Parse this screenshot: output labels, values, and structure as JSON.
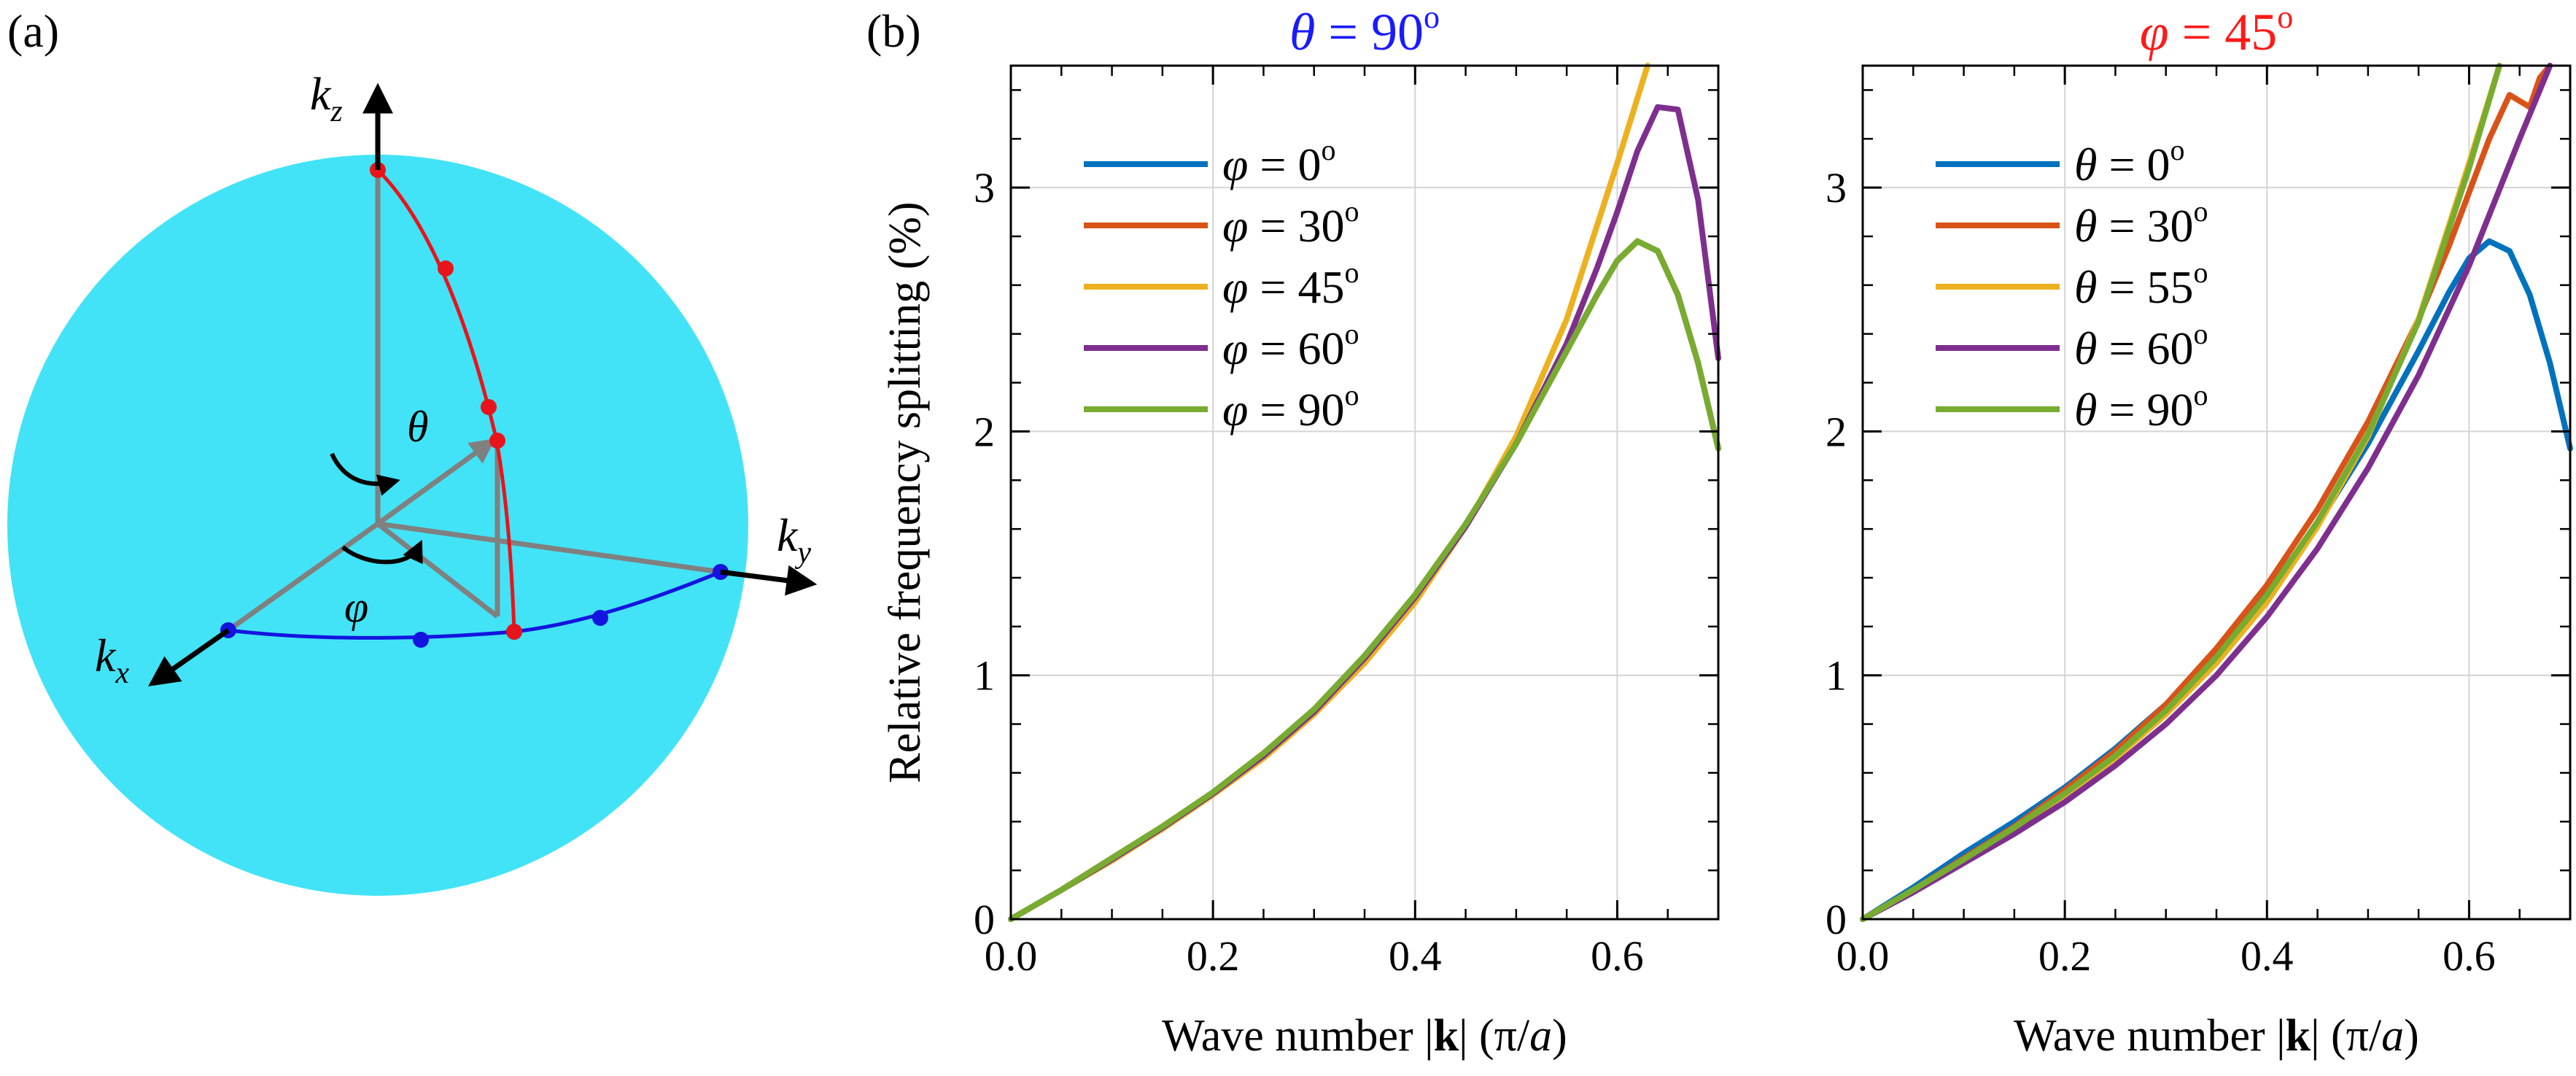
{
  "figure": {
    "panel_a_label": "(a)",
    "panel_b_label": "(b)",
    "sphere_color": "#42e3f7",
    "axis_labels": {
      "kz": {
        "base": "k",
        "sub": "z"
      },
      "ky": {
        "base": "k",
        "sub": "y"
      },
      "kx": {
        "base": "k",
        "sub": "x"
      }
    },
    "angle_labels": {
      "theta": "θ",
      "phi": "φ"
    },
    "colors": {
      "theta_arc": "#e8141c",
      "phi_arc": "#1414e0",
      "vector": "#808080",
      "axis": "#000000"
    }
  },
  "chart_data": [
    {
      "type": "line",
      "title": {
        "symbol": "θ",
        "eq": " = 90",
        "sup": "o",
        "color": "#1a1aff"
      },
      "xlabel": {
        "pre": "Wave number |",
        "bold": "k",
        "post": "| (π/",
        "ital": "a",
        "end": ")"
      },
      "ylabel": "Relative frequency splitting (%)",
      "xlim": [
        0,
        0.7
      ],
      "ylim": [
        0,
        3.5
      ],
      "xticks": [
        "0.0",
        "0.2",
        "0.4",
        "0.6"
      ],
      "yticks": [
        "0",
        "1",
        "2",
        "3"
      ],
      "grid": true,
      "legend_position": "top-left",
      "series": [
        {
          "legend": {
            "symbol": "φ",
            "eq": " = 0",
            "sup": "o"
          },
          "color": "#0072bd",
          "x": [
            0,
            0.05,
            0.1,
            0.15,
            0.2,
            0.25,
            0.3,
            0.35,
            0.4,
            0.45,
            0.5,
            0.55,
            0.58,
            0.6,
            0.62,
            0.64,
            0.66,
            0.68,
            0.7
          ],
          "y": [
            0,
            0.12,
            0.25,
            0.38,
            0.52,
            0.68,
            0.86,
            1.08,
            1.33,
            1.62,
            1.95,
            2.33,
            2.56,
            2.7,
            2.78,
            2.74,
            2.56,
            2.28,
            1.93
          ]
        },
        {
          "legend": {
            "symbol": "φ",
            "eq": " = 30",
            "sup": "o"
          },
          "color": "#d95319",
          "x": [
            0,
            0.05,
            0.1,
            0.15,
            0.2,
            0.25,
            0.3,
            0.35,
            0.4,
            0.45,
            0.5,
            0.55,
            0.58,
            0.6,
            0.62,
            0.64,
            0.66,
            0.68,
            0.7
          ],
          "y": [
            0,
            0.12,
            0.25,
            0.38,
            0.52,
            0.68,
            0.86,
            1.08,
            1.33,
            1.62,
            1.95,
            2.33,
            2.56,
            2.7,
            2.78,
            2.74,
            2.56,
            2.28,
            1.93
          ]
        },
        {
          "legend": {
            "symbol": "φ",
            "eq": " = 45",
            "sup": "o"
          },
          "color": "#edb120",
          "x": [
            0,
            0.05,
            0.1,
            0.15,
            0.2,
            0.25,
            0.3,
            0.35,
            0.4,
            0.45,
            0.5,
            0.55,
            0.6,
            0.63
          ],
          "y": [
            0,
            0.12,
            0.24,
            0.37,
            0.51,
            0.66,
            0.84,
            1.05,
            1.3,
            1.61,
            1.98,
            2.46,
            3.1,
            3.5
          ]
        },
        {
          "legend": {
            "symbol": "φ",
            "eq": " = 60",
            "sup": "o"
          },
          "color": "#7e2f8e",
          "x": [
            0,
            0.05,
            0.1,
            0.15,
            0.2,
            0.25,
            0.3,
            0.35,
            0.4,
            0.45,
            0.5,
            0.55,
            0.58,
            0.6,
            0.62,
            0.64,
            0.66,
            0.68,
            0.7
          ],
          "y": [
            0,
            0.12,
            0.245,
            0.375,
            0.515,
            0.67,
            0.85,
            1.07,
            1.32,
            1.61,
            1.95,
            2.36,
            2.67,
            2.9,
            3.15,
            3.33,
            3.32,
            2.95,
            2.3
          ]
        },
        {
          "legend": {
            "symbol": "φ",
            "eq": " = 90",
            "sup": "o"
          },
          "color": "#77ac30",
          "x": [
            0,
            0.05,
            0.1,
            0.15,
            0.2,
            0.25,
            0.3,
            0.35,
            0.4,
            0.45,
            0.5,
            0.55,
            0.58,
            0.6,
            0.62,
            0.64,
            0.66,
            0.68,
            0.7
          ],
          "y": [
            0,
            0.12,
            0.25,
            0.38,
            0.52,
            0.68,
            0.86,
            1.08,
            1.33,
            1.62,
            1.95,
            2.33,
            2.56,
            2.7,
            2.78,
            2.74,
            2.56,
            2.28,
            1.93
          ]
        }
      ]
    },
    {
      "type": "line",
      "title": {
        "symbol": "φ",
        "eq": " = 45",
        "sup": "o",
        "color": "#ff1a1a"
      },
      "xlabel": {
        "pre": "Wave number |",
        "bold": "k",
        "post": "| (π/",
        "ital": "a",
        "end": ")"
      },
      "ylabel": "",
      "xlim": [
        0,
        0.7
      ],
      "ylim": [
        0,
        3.5
      ],
      "xticks": [
        "0.0",
        "0.2",
        "0.4",
        "0.6"
      ],
      "yticks": [
        "0",
        "1",
        "2",
        "3"
      ],
      "grid": true,
      "legend_position": "top-left",
      "series": [
        {
          "legend": {
            "symbol": "θ",
            "eq": " = 0",
            "sup": "o"
          },
          "color": "#0072bd",
          "x": [
            0,
            0.05,
            0.1,
            0.15,
            0.2,
            0.25,
            0.3,
            0.35,
            0.4,
            0.45,
            0.5,
            0.55,
            0.58,
            0.6,
            0.62,
            0.64,
            0.66,
            0.68,
            0.7
          ],
          "y": [
            0,
            0.13,
            0.27,
            0.4,
            0.54,
            0.7,
            0.88,
            1.09,
            1.34,
            1.62,
            1.95,
            2.33,
            2.57,
            2.71,
            2.78,
            2.74,
            2.56,
            2.28,
            1.93
          ]
        },
        {
          "legend": {
            "symbol": "θ",
            "eq": " = 30",
            "sup": "o"
          },
          "color": "#d95319",
          "x": [
            0,
            0.05,
            0.1,
            0.15,
            0.2,
            0.25,
            0.3,
            0.35,
            0.4,
            0.45,
            0.5,
            0.55,
            0.58,
            0.6,
            0.62,
            0.64,
            0.66,
            0.67,
            0.68
          ],
          "y": [
            0,
            0.12,
            0.25,
            0.38,
            0.53,
            0.69,
            0.88,
            1.11,
            1.37,
            1.68,
            2.04,
            2.46,
            2.76,
            2.98,
            3.2,
            3.38,
            3.33,
            3.45,
            3.5
          ]
        },
        {
          "legend": {
            "symbol": "θ",
            "eq": " = 55",
            "sup": "o"
          },
          "color": "#edb120",
          "x": [
            0,
            0.05,
            0.1,
            0.15,
            0.2,
            0.25,
            0.3,
            0.35,
            0.4,
            0.45,
            0.5,
            0.55,
            0.6,
            0.63
          ],
          "y": [
            0,
            0.12,
            0.24,
            0.37,
            0.51,
            0.66,
            0.84,
            1.05,
            1.3,
            1.61,
            1.98,
            2.46,
            3.1,
            3.5
          ]
        },
        {
          "legend": {
            "symbol": "θ",
            "eq": " = 60",
            "sup": "o"
          },
          "color": "#7e2f8e",
          "x": [
            0,
            0.05,
            0.1,
            0.15,
            0.2,
            0.25,
            0.3,
            0.35,
            0.4,
            0.45,
            0.5,
            0.55,
            0.6,
            0.65,
            0.68
          ],
          "y": [
            0,
            0.11,
            0.23,
            0.35,
            0.48,
            0.63,
            0.8,
            1.0,
            1.24,
            1.52,
            1.85,
            2.23,
            2.68,
            3.2,
            3.5
          ]
        },
        {
          "legend": {
            "symbol": "θ",
            "eq": " = 90",
            "sup": "o"
          },
          "color": "#77ac30",
          "x": [
            0,
            0.05,
            0.1,
            0.15,
            0.2,
            0.25,
            0.3,
            0.35,
            0.4,
            0.45,
            0.5,
            0.55,
            0.6,
            0.63
          ],
          "y": [
            0,
            0.12,
            0.245,
            0.375,
            0.515,
            0.67,
            0.855,
            1.075,
            1.33,
            1.63,
            1.99,
            2.45,
            3.08,
            3.5
          ]
        }
      ]
    }
  ]
}
